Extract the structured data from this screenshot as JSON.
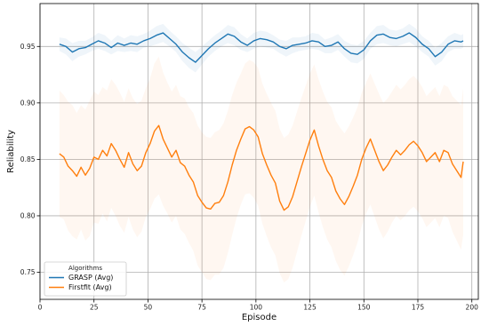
{
  "chart_data": {
    "type": "line",
    "xlabel": "Episode",
    "ylabel": "Reliability",
    "xlim": [
      0,
      203
    ],
    "ylim": [
      0.726,
      0.988
    ],
    "xticks": [
      0,
      25,
      50,
      75,
      100,
      125,
      150,
      175,
      200
    ],
    "yticks": [
      0.75,
      0.8,
      0.85,
      0.9,
      0.95
    ],
    "x_tick_labels": [
      "0",
      "25",
      "50",
      "75",
      "100",
      "125",
      "150",
      "175",
      "200"
    ],
    "y_tick_labels": [
      "0.75",
      "0.80",
      "0.85",
      "0.90",
      "0.95"
    ],
    "grid": true,
    "legend": {
      "title": "Algorithms",
      "placement": "lower-left"
    },
    "series": [
      {
        "name": "GRASP (Avg)",
        "color": "#1f77b4",
        "band_color": "#1f77b4",
        "x": [
          9,
          12,
          15,
          18,
          21,
          24,
          27,
          30,
          33,
          36,
          39,
          42,
          45,
          48,
          51,
          54,
          57,
          60,
          63,
          66,
          69,
          72,
          75,
          78,
          81,
          84,
          87,
          90,
          93,
          96,
          99,
          102,
          105,
          108,
          111,
          114,
          117,
          120,
          123,
          126,
          129,
          132,
          135,
          138,
          141,
          144,
          147,
          150,
          153,
          156,
          159,
          162,
          165,
          168,
          171,
          174,
          177,
          180,
          183,
          186,
          189,
          192,
          195,
          196
        ],
        "y": [
          0.952,
          0.95,
          0.945,
          0.948,
          0.949,
          0.952,
          0.955,
          0.953,
          0.949,
          0.953,
          0.951,
          0.953,
          0.952,
          0.955,
          0.957,
          0.96,
          0.962,
          0.957,
          0.952,
          0.945,
          0.94,
          0.936,
          0.942,
          0.948,
          0.953,
          0.957,
          0.961,
          0.959,
          0.954,
          0.951,
          0.955,
          0.957,
          0.956,
          0.954,
          0.95,
          0.948,
          0.951,
          0.952,
          0.953,
          0.955,
          0.954,
          0.95,
          0.951,
          0.954,
          0.948,
          0.944,
          0.943,
          0.947,
          0.955,
          0.96,
          0.961,
          0.958,
          0.957,
          0.959,
          0.962,
          0.958,
          0.952,
          0.948,
          0.941,
          0.945,
          0.952,
          0.955,
          0.954,
          0.955
        ],
        "band_halfwidth": [
          0.006,
          0.007,
          0.008,
          0.007,
          0.006,
          0.006,
          0.007,
          0.007,
          0.006,
          0.007,
          0.006,
          0.007,
          0.007,
          0.006,
          0.007,
          0.008,
          0.008,
          0.007,
          0.007,
          0.008,
          0.009,
          0.009,
          0.008,
          0.007,
          0.007,
          0.007,
          0.008,
          0.008,
          0.007,
          0.006,
          0.007,
          0.007,
          0.007,
          0.006,
          0.006,
          0.007,
          0.007,
          0.006,
          0.006,
          0.007,
          0.007,
          0.006,
          0.007,
          0.007,
          0.007,
          0.008,
          0.008,
          0.008,
          0.007,
          0.008,
          0.008,
          0.007,
          0.007,
          0.007,
          0.008,
          0.008,
          0.007,
          0.007,
          0.008,
          0.008,
          0.007,
          0.007,
          0.006,
          0.006
        ]
      },
      {
        "name": "Firstfit (Avg)",
        "color": "#ff7f0e",
        "band_color": "#ff7f0e",
        "x": [
          9,
          11,
          13,
          15,
          17,
          19,
          21,
          23,
          25,
          27,
          29,
          31,
          33,
          35,
          37,
          39,
          41,
          43,
          45,
          47,
          49,
          51,
          53,
          55,
          57,
          59,
          61,
          63,
          65,
          67,
          69,
          71,
          73,
          75,
          77,
          79,
          81,
          83,
          85,
          87,
          89,
          91,
          93,
          95,
          97,
          99,
          101,
          103,
          105,
          107,
          109,
          111,
          113,
          115,
          117,
          119,
          121,
          123,
          125,
          127,
          129,
          131,
          133,
          135,
          137,
          139,
          141,
          143,
          145,
          147,
          149,
          151,
          153,
          155,
          157,
          159,
          161,
          163,
          165,
          167,
          169,
          171,
          173,
          175,
          177,
          179,
          181,
          183,
          185,
          187,
          189,
          191,
          193,
          195,
          196
        ],
        "y": [
          0.855,
          0.852,
          0.844,
          0.84,
          0.835,
          0.843,
          0.836,
          0.842,
          0.852,
          0.85,
          0.858,
          0.853,
          0.864,
          0.858,
          0.85,
          0.843,
          0.856,
          0.846,
          0.84,
          0.844,
          0.856,
          0.864,
          0.875,
          0.88,
          0.868,
          0.86,
          0.852,
          0.858,
          0.847,
          0.844,
          0.836,
          0.83,
          0.818,
          0.812,
          0.807,
          0.806,
          0.811,
          0.812,
          0.818,
          0.83,
          0.845,
          0.858,
          0.868,
          0.877,
          0.879,
          0.876,
          0.87,
          0.855,
          0.845,
          0.836,
          0.829,
          0.813,
          0.805,
          0.808,
          0.817,
          0.83,
          0.843,
          0.855,
          0.867,
          0.876,
          0.862,
          0.85,
          0.84,
          0.834,
          0.822,
          0.815,
          0.81,
          0.817,
          0.826,
          0.836,
          0.85,
          0.86,
          0.868,
          0.858,
          0.848,
          0.84,
          0.845,
          0.852,
          0.858,
          0.854,
          0.858,
          0.863,
          0.866,
          0.862,
          0.856,
          0.848,
          0.852,
          0.856,
          0.848,
          0.858,
          0.856,
          0.846,
          0.84,
          0.834,
          0.848
        ],
        "band_halfwidth": [
          0.056,
          0.055,
          0.057,
          0.058,
          0.056,
          0.055,
          0.058,
          0.06,
          0.058,
          0.057,
          0.056,
          0.058,
          0.057,
          0.058,
          0.059,
          0.058,
          0.057,
          0.058,
          0.059,
          0.058,
          0.057,
          0.058,
          0.06,
          0.061,
          0.059,
          0.058,
          0.058,
          0.058,
          0.059,
          0.06,
          0.06,
          0.061,
          0.062,
          0.062,
          0.063,
          0.063,
          0.063,
          0.064,
          0.064,
          0.063,
          0.062,
          0.06,
          0.058,
          0.058,
          0.059,
          0.06,
          0.061,
          0.062,
          0.063,
          0.064,
          0.064,
          0.064,
          0.064,
          0.064,
          0.063,
          0.062,
          0.061,
          0.06,
          0.059,
          0.058,
          0.059,
          0.06,
          0.061,
          0.062,
          0.062,
          0.063,
          0.063,
          0.062,
          0.061,
          0.06,
          0.059,
          0.058,
          0.058,
          0.059,
          0.06,
          0.06,
          0.059,
          0.058,
          0.058,
          0.058,
          0.058,
          0.058,
          0.058,
          0.058,
          0.058,
          0.058,
          0.058,
          0.058,
          0.058,
          0.058,
          0.058,
          0.06,
          0.062,
          0.064,
          0.065
        ]
      }
    ]
  }
}
